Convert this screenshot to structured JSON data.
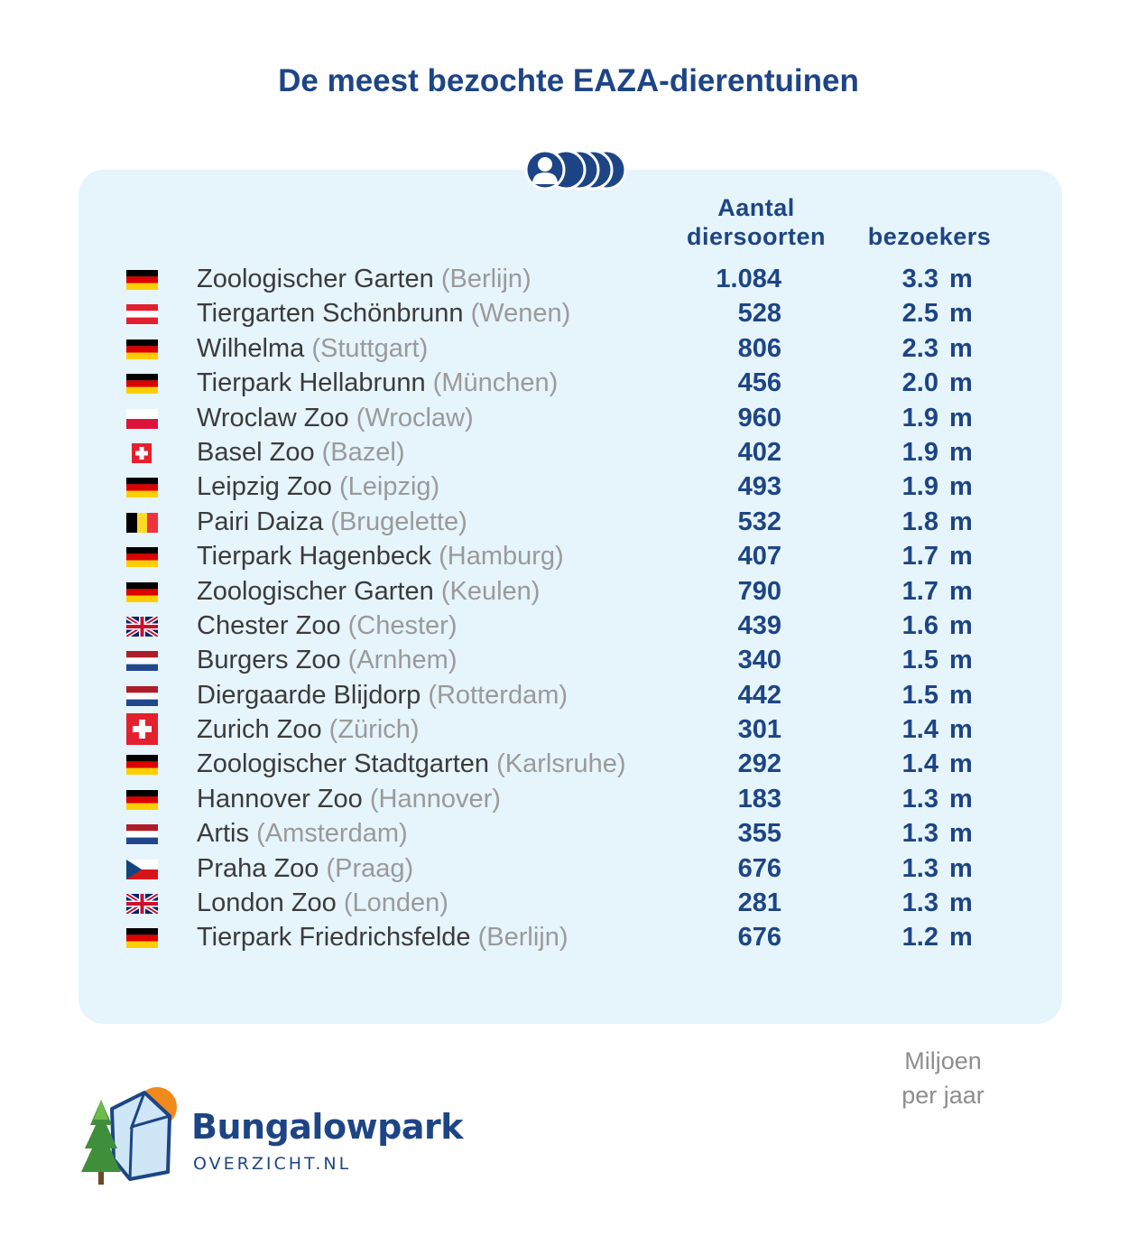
{
  "title": "De meest bezochte EAZA-dierentuinen",
  "header": {
    "species_line1": "Aantal",
    "species_line2": "diersoorten",
    "visitors": "bezoekers"
  },
  "note": {
    "line1": "Miljoen",
    "line2": "per jaar"
  },
  "logo": {
    "name": "Bungalowpark",
    "sub": "OVERZICHT.NL"
  },
  "colors": {
    "accent": "#1d4585",
    "panel": "#e6f4fc",
    "city": "#9a9a9a",
    "text": "#3b3b3b"
  },
  "icons": {
    "header": "visitors-group-icon"
  },
  "chart_data": {
    "type": "table",
    "title": "De meest bezochte EAZA-dierentuinen",
    "columns": [
      "Aantal diersoorten",
      "bezoekers"
    ],
    "rows": [
      {
        "flag": "germany",
        "zoo": "Zoologischer Garten",
        "city": "(Berlijn)",
        "species": "1.084",
        "visitors": "3.3",
        "unit": "m"
      },
      {
        "flag": "austria",
        "zoo": "Tiergarten Schönbrunn",
        "city": "(Wenen)",
        "species": "528",
        "visitors": "2.5",
        "unit": "m"
      },
      {
        "flag": "germany",
        "zoo": "Wilhelma",
        "city": "(Stuttgart)",
        "species": "806",
        "visitors": "2.3",
        "unit": "m"
      },
      {
        "flag": "germany",
        "zoo": "Tierpark Hellabrunn",
        "city": "(München)",
        "species": "456",
        "visitors": "2.0",
        "unit": "m"
      },
      {
        "flag": "poland",
        "zoo": "Wroclaw Zoo",
        "city": "(Wroclaw)",
        "species": "960",
        "visitors": "1.9",
        "unit": "m"
      },
      {
        "flag": "switzerland-small",
        "zoo": "Basel Zoo",
        "city": "(Bazel)",
        "species": "402",
        "visitors": "1.9",
        "unit": "m"
      },
      {
        "flag": "germany",
        "zoo": "Leipzig Zoo",
        "city": "(Leipzig)",
        "species": "493",
        "visitors": "1.9",
        "unit": "m"
      },
      {
        "flag": "belgium",
        "zoo": "Pairi Daiza",
        "city": "(Brugelette)",
        "species": "532",
        "visitors": "1.8",
        "unit": "m"
      },
      {
        "flag": "germany",
        "zoo": "Tierpark Hagenbeck",
        "city": "(Hamburg)",
        "species": "407",
        "visitors": "1.7",
        "unit": "m"
      },
      {
        "flag": "germany",
        "zoo": "Zoologischer Garten",
        "city": "(Keulen)",
        "species": "790",
        "visitors": "1.7",
        "unit": "m"
      },
      {
        "flag": "uk",
        "zoo": "Chester Zoo",
        "city": "(Chester)",
        "species": "439",
        "visitors": "1.6",
        "unit": "m"
      },
      {
        "flag": "netherlands",
        "zoo": "Burgers Zoo",
        "city": "(Arnhem)",
        "species": "340",
        "visitors": "1.5",
        "unit": "m"
      },
      {
        "flag": "netherlands",
        "zoo": "Diergaarde Blijdorp",
        "city": "(Rotterdam)",
        "species": "442",
        "visitors": "1.5",
        "unit": "m"
      },
      {
        "flag": "switzerland",
        "zoo": "Zurich Zoo",
        "city": "(Zürich)",
        "species": "301",
        "visitors": "1.4",
        "unit": "m"
      },
      {
        "flag": "germany",
        "zoo": "Zoologischer Stadtgarten",
        "city": "(Karlsruhe)",
        "species": "292",
        "visitors": "1.4",
        "unit": "m"
      },
      {
        "flag": "germany",
        "zoo": "Hannover Zoo",
        "city": "(Hannover)",
        "species": "183",
        "visitors": "1.3",
        "unit": "m"
      },
      {
        "flag": "netherlands",
        "zoo": "Artis",
        "city": "(Amsterdam)",
        "species": "355",
        "visitors": "1.3",
        "unit": "m"
      },
      {
        "flag": "czech",
        "zoo": "Praha Zoo",
        "city": "(Praag)",
        "species": "676",
        "visitors": "1.3",
        "unit": "m"
      },
      {
        "flag": "uk",
        "zoo": "London Zoo",
        "city": "(Londen)",
        "species": "281",
        "visitors": "1.3",
        "unit": "m"
      },
      {
        "flag": "germany",
        "zoo": "Tierpark Friedrichsfelde",
        "city": "(Berlijn)",
        "species": "676",
        "visitors": "1.2",
        "unit": "m"
      }
    ]
  }
}
